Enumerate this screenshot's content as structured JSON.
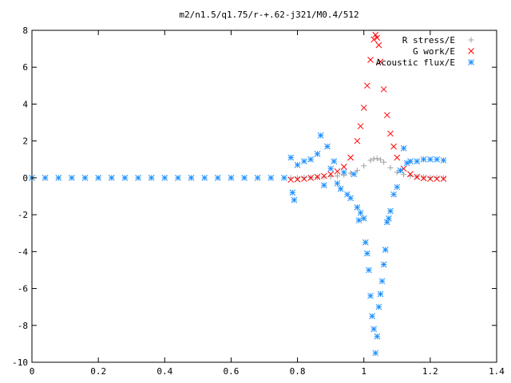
{
  "chart_data": {
    "type": "scatter",
    "title": "m2/n1.5/q1.75/r-+.62-j321/M0.4/512",
    "xlabel": "",
    "ylabel": "",
    "xlim": [
      0,
      1.4
    ],
    "ylim": [
      -10,
      8
    ],
    "x_ticks": [
      "0",
      "0.2",
      "0.4",
      "0.6",
      "0.8",
      "1",
      "1.2",
      "1.4"
    ],
    "y_ticks": [
      "8",
      "6",
      "4",
      "2",
      "0",
      "-2",
      "-4",
      "-6",
      "-8",
      "-10"
    ],
    "x_tick_values": [
      0,
      0.2,
      0.4,
      0.6,
      0.8,
      1.0,
      1.2,
      1.4
    ],
    "y_tick_values": [
      8,
      6,
      4,
      2,
      0,
      -2,
      -4,
      -6,
      -8,
      -10
    ],
    "grid": false,
    "legend_position": "top-right",
    "series": [
      {
        "name": "R stress/E",
        "marker": "plus",
        "color": "#a0a0a0",
        "x": [
          0.78,
          0.8,
          0.82,
          0.84,
          0.86,
          0.88,
          0.9,
          0.92,
          0.94,
          0.96,
          0.98,
          1.0,
          1.02,
          1.03,
          1.04,
          1.05,
          1.06,
          1.08,
          1.1,
          1.12,
          1.14,
          1.16,
          1.18,
          1.2,
          1.22,
          1.24
        ],
        "y": [
          0.0,
          0.0,
          0.01,
          0.02,
          0.03,
          0.05,
          0.07,
          0.1,
          0.15,
          0.25,
          0.4,
          0.65,
          0.95,
          1.03,
          1.05,
          0.98,
          0.85,
          0.55,
          0.3,
          0.18,
          0.1,
          0.06,
          0.03,
          0.02,
          0.01,
          0.0
        ]
      },
      {
        "name": "G work/E",
        "marker": "cross",
        "color": "#ff0000",
        "x": [
          0.78,
          0.8,
          0.82,
          0.84,
          0.86,
          0.88,
          0.9,
          0.92,
          0.94,
          0.96,
          0.98,
          0.99,
          1.0,
          1.01,
          1.02,
          1.03,
          1.035,
          1.04,
          1.045,
          1.05,
          1.06,
          1.07,
          1.08,
          1.09,
          1.1,
          1.12,
          1.14,
          1.16,
          1.18,
          1.2,
          1.22,
          1.24
        ],
        "y": [
          -0.1,
          -0.08,
          -0.05,
          0.0,
          0.05,
          0.1,
          0.2,
          0.35,
          0.6,
          1.1,
          2.0,
          2.8,
          3.8,
          5.0,
          6.4,
          7.5,
          7.75,
          7.6,
          7.2,
          6.3,
          4.8,
          3.4,
          2.4,
          1.7,
          1.1,
          0.5,
          0.2,
          0.05,
          -0.02,
          -0.05,
          -0.05,
          -0.05
        ]
      },
      {
        "name": "Acoustic flux/E",
        "marker": "star",
        "color": "#1e90ff",
        "x": [
          0.0,
          0.04,
          0.08,
          0.12,
          0.16,
          0.2,
          0.24,
          0.28,
          0.32,
          0.36,
          0.4,
          0.44,
          0.48,
          0.52,
          0.56,
          0.6,
          0.64,
          0.68,
          0.72,
          0.76,
          0.78,
          0.785,
          0.79,
          0.8,
          0.82,
          0.84,
          0.86,
          0.87,
          0.88,
          0.89,
          0.9,
          0.91,
          0.92,
          0.93,
          0.94,
          0.95,
          0.96,
          0.97,
          0.98,
          0.985,
          0.99,
          1.0,
          1.005,
          1.01,
          1.015,
          1.02,
          1.025,
          1.03,
          1.035,
          1.04,
          1.045,
          1.05,
          1.055,
          1.06,
          1.065,
          1.07,
          1.075,
          1.08,
          1.09,
          1.1,
          1.11,
          1.12,
          1.13,
          1.14,
          1.16,
          1.18,
          1.2,
          1.22,
          1.24
        ],
        "y": [
          0.0,
          0.0,
          0.0,
          0.0,
          0.0,
          0.0,
          0.0,
          0.0,
          0.0,
          0.0,
          0.0,
          0.0,
          0.0,
          0.0,
          0.0,
          0.0,
          0.0,
          0.0,
          0.0,
          0.0,
          1.1,
          -0.8,
          -1.2,
          0.7,
          0.9,
          1.0,
          1.3,
          2.3,
          -0.4,
          1.7,
          0.5,
          0.9,
          -0.3,
          -0.6,
          0.3,
          -0.9,
          -1.1,
          0.2,
          -1.6,
          -2.3,
          -1.9,
          -2.2,
          -3.5,
          -4.1,
          -5.0,
          -6.4,
          -7.5,
          -8.2,
          -9.5,
          -8.6,
          -7.0,
          -6.3,
          -5.6,
          -4.7,
          -3.9,
          -2.4,
          -2.2,
          -1.8,
          -0.9,
          -0.5,
          0.4,
          1.6,
          0.8,
          0.9,
          0.9,
          1.0,
          1.0,
          1.0,
          0.95
        ]
      }
    ]
  }
}
